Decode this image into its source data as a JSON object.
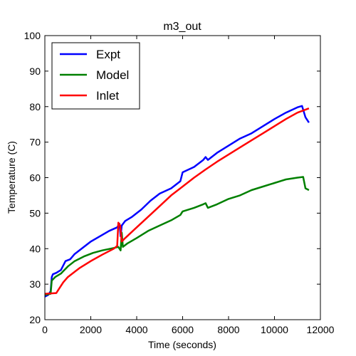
{
  "chart_data": {
    "type": "line",
    "title": "m3_out",
    "xlabel": "Time (seconds)",
    "ylabel": "Temperature (C)",
    "xlim": [
      0,
      12000
    ],
    "ylim": [
      20,
      100
    ],
    "xticks": [
      "0",
      "2000",
      "4000",
      "6000",
      "8000",
      "10000",
      "12000"
    ],
    "yticks": [
      "20",
      "30",
      "40",
      "50",
      "60",
      "70",
      "80",
      "90",
      "100"
    ],
    "grid": false,
    "legend_position": "top-left",
    "series": [
      {
        "name": "Expt",
        "color": "#0000ff",
        "points": [
          [
            0,
            26.5
          ],
          [
            150,
            27
          ],
          [
            250,
            28
          ],
          [
            300,
            32
          ],
          [
            350,
            32.8
          ],
          [
            500,
            33.2
          ],
          [
            700,
            34
          ],
          [
            900,
            36.5
          ],
          [
            1100,
            37
          ],
          [
            1300,
            38.5
          ],
          [
            1600,
            40
          ],
          [
            2000,
            42
          ],
          [
            2400,
            43.5
          ],
          [
            2800,
            45
          ],
          [
            3150,
            46
          ],
          [
            3250,
            47
          ],
          [
            3300,
            43.5
          ],
          [
            3350,
            46.5
          ],
          [
            3500,
            47.8
          ],
          [
            3800,
            49
          ],
          [
            4200,
            51
          ],
          [
            4600,
            53.5
          ],
          [
            5000,
            55.5
          ],
          [
            5500,
            57
          ],
          [
            5900,
            59
          ],
          [
            6000,
            61.5
          ],
          [
            6500,
            63
          ],
          [
            6900,
            65
          ],
          [
            7000,
            65.8
          ],
          [
            7100,
            65
          ],
          [
            7500,
            67
          ],
          [
            8000,
            69
          ],
          [
            8500,
            71
          ],
          [
            9000,
            72.5
          ],
          [
            9500,
            74.5
          ],
          [
            10000,
            76.5
          ],
          [
            10500,
            78.3
          ],
          [
            11000,
            79.8
          ],
          [
            11200,
            80.2
          ],
          [
            11350,
            77
          ],
          [
            11500,
            75.5
          ]
        ]
      },
      {
        "name": "Model",
        "color": "#008000",
        "points": [
          [
            0,
            27
          ],
          [
            250,
            27.3
          ],
          [
            300,
            31
          ],
          [
            450,
            32
          ],
          [
            700,
            33
          ],
          [
            1000,
            35
          ],
          [
            1300,
            36.5
          ],
          [
            1700,
            37.8
          ],
          [
            2100,
            38.8
          ],
          [
            2500,
            39.5
          ],
          [
            3000,
            40.2
          ],
          [
            3200,
            40.5
          ],
          [
            3300,
            39.5
          ],
          [
            3350,
            44.5
          ],
          [
            3400,
            40.5
          ],
          [
            3600,
            41.5
          ],
          [
            4000,
            43
          ],
          [
            4500,
            45
          ],
          [
            5000,
            46.5
          ],
          [
            5500,
            48
          ],
          [
            5900,
            49.5
          ],
          [
            6000,
            50.5
          ],
          [
            6500,
            51.5
          ],
          [
            6900,
            52.5
          ],
          [
            7000,
            52.8
          ],
          [
            7100,
            51.5
          ],
          [
            7500,
            52.5
          ],
          [
            8000,
            54
          ],
          [
            8500,
            55
          ],
          [
            9000,
            56.5
          ],
          [
            9500,
            57.5
          ],
          [
            10000,
            58.5
          ],
          [
            10500,
            59.5
          ],
          [
            11000,
            60
          ],
          [
            11250,
            60.2
          ],
          [
            11350,
            57
          ],
          [
            11500,
            56.5
          ]
        ]
      },
      {
        "name": "Inlet",
        "color": "#ff0000",
        "points": [
          [
            0,
            27.3
          ],
          [
            500,
            27.5
          ],
          [
            600,
            28.5
          ],
          [
            800,
            30.5
          ],
          [
            1000,
            32
          ],
          [
            1500,
            34.5
          ],
          [
            2000,
            36.5
          ],
          [
            2500,
            38.3
          ],
          [
            3000,
            40
          ],
          [
            3150,
            40.8
          ],
          [
            3200,
            47.3
          ],
          [
            3280,
            46.5
          ],
          [
            3350,
            42
          ],
          [
            3500,
            43
          ],
          [
            4000,
            46
          ],
          [
            4500,
            49
          ],
          [
            5000,
            52
          ],
          [
            5500,
            55
          ],
          [
            6000,
            57.5
          ],
          [
            6500,
            60
          ],
          [
            7000,
            62.3
          ],
          [
            7500,
            64.5
          ],
          [
            8000,
            66.5
          ],
          [
            8500,
            68.5
          ],
          [
            9000,
            70.5
          ],
          [
            9500,
            72.5
          ],
          [
            10000,
            74.5
          ],
          [
            10500,
            76.5
          ],
          [
            11000,
            78.3
          ],
          [
            11500,
            79.5
          ]
        ]
      }
    ]
  }
}
